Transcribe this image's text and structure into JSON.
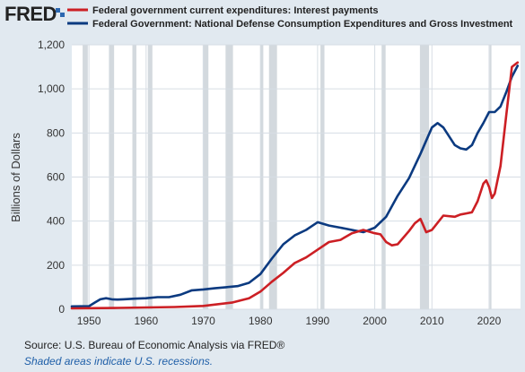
{
  "brand": "FRED",
  "footer": {
    "source": "Source: U.S. Bureau of Economic Analysis via FRED®",
    "note": "Shaded areas indicate U.S. recessions."
  },
  "colors": {
    "background": "#e1e9f0",
    "plot_bg": "#ffffff",
    "grid": "#d6dde4",
    "recession": "#d3d9de",
    "interest": "#cc1f24",
    "defense": "#0b3a80"
  },
  "chart_data": {
    "type": "line",
    "title": "",
    "xlabel": "",
    "ylabel": "Billions of Dollars",
    "xlim": [
      1947,
      2025.5
    ],
    "ylim": [
      0,
      1200
    ],
    "xticks": [
      1950,
      1960,
      1970,
      1980,
      1990,
      2000,
      2010,
      2020
    ],
    "yticks": [
      0,
      200,
      400,
      600,
      800,
      1000,
      1200
    ],
    "ytick_labels": [
      "0",
      "200",
      "400",
      "600",
      "800",
      "1,000",
      "1,200"
    ],
    "grid": true,
    "legend_position": "top",
    "recessions": [
      [
        1948.9,
        1949.8
      ],
      [
        1953.5,
        1954.4
      ],
      [
        1957.6,
        1958.3
      ],
      [
        1960.3,
        1961.1
      ],
      [
        1969.9,
        1970.9
      ],
      [
        1973.9,
        1975.2
      ],
      [
        1980.0,
        1980.5
      ],
      [
        1981.5,
        1982.9
      ],
      [
        1990.5,
        1991.2
      ],
      [
        2001.2,
        2001.9
      ],
      [
        2007.9,
        2009.5
      ],
      [
        2020.1,
        2020.4
      ]
    ],
    "series": [
      {
        "name": "Federal government current expenditures: Interest payments",
        "color": "#cc1f24",
        "x": [
          1947,
          1950,
          1955,
          1960,
          1965,
          1970,
          1975,
          1978,
          1980,
          1982,
          1984,
          1986,
          1988,
          1990,
          1992,
          1994,
          1996,
          1998,
          2000,
          2001,
          2002,
          2003,
          2004,
          2006,
          2007,
          2008,
          2009,
          2010,
          2012,
          2014,
          2015,
          2016,
          2017,
          2018,
          2019,
          2019.5,
          2020,
          2020.5,
          2021,
          2022,
          2023,
          2024,
          2025
        ],
        "y": [
          4,
          5,
          6,
          8,
          10,
          15,
          30,
          50,
          80,
          125,
          165,
          210,
          235,
          270,
          305,
          315,
          345,
          360,
          345,
          340,
          305,
          290,
          295,
          355,
          390,
          410,
          350,
          360,
          425,
          420,
          430,
          435,
          440,
          490,
          570,
          585,
          555,
          505,
          525,
          650,
          880,
          1100,
          1120
        ]
      },
      {
        "name": "Federal Government: National Defense Consumption Expenditures and Gross Investment",
        "color": "#0b3a80",
        "x": [
          1947,
          1950,
          1951,
          1952,
          1953,
          1954,
          1955,
          1956,
          1958,
          1960,
          1962,
          1964,
          1966,
          1968,
          1970,
          1972,
          1974,
          1976,
          1978,
          1980,
          1982,
          1984,
          1986,
          1988,
          1990,
          1992,
          1994,
          1996,
          1998,
          2000,
          2002,
          2004,
          2006,
          2008,
          2010,
          2011,
          2012,
          2014,
          2015,
          2016,
          2017,
          2018,
          2019,
          2020,
          2021,
          2022,
          2023,
          2024,
          2025
        ],
        "y": [
          13,
          14,
          30,
          45,
          50,
          45,
          44,
          45,
          48,
          50,
          55,
          55,
          66,
          86,
          90,
          95,
          100,
          105,
          120,
          160,
          230,
          295,
          335,
          360,
          395,
          380,
          370,
          360,
          350,
          370,
          420,
          515,
          595,
          705,
          825,
          845,
          825,
          745,
          730,
          725,
          745,
          800,
          845,
          895,
          895,
          920,
          985,
          1055,
          1105
        ]
      }
    ]
  }
}
